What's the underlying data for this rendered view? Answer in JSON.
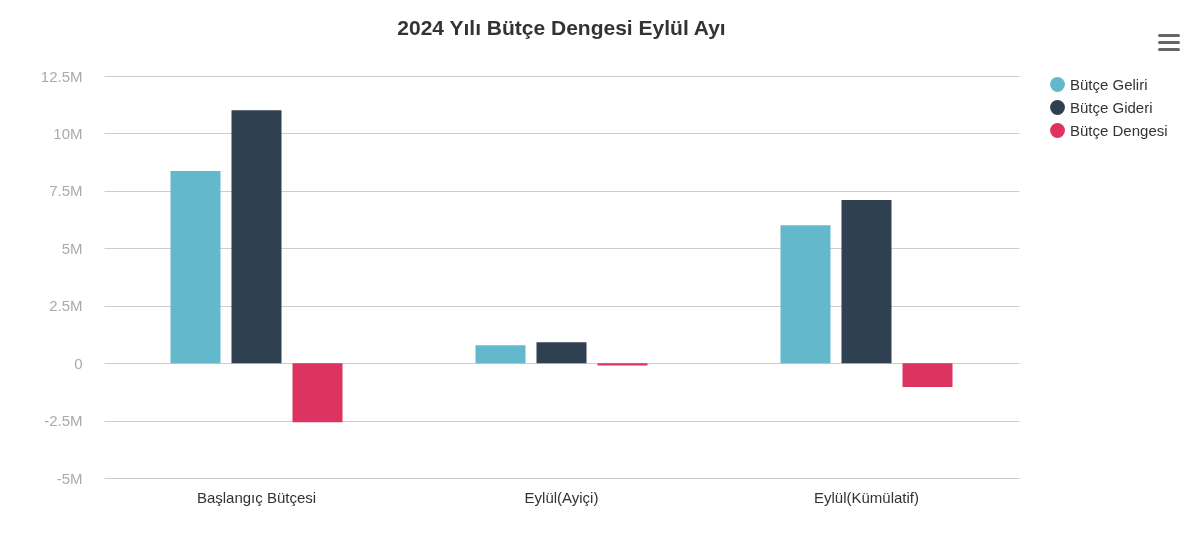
{
  "chart_data": {
    "type": "bar",
    "title": "2024 Yılı Bütçe Dengesi Eylül Ayı",
    "categories": [
      "Başlangıç Bütçesi",
      "Eylül(Ayiçi)",
      "Eylül(Kümülatif)"
    ],
    "series": [
      {
        "name": "Bütçe Geliri",
        "color": "#64b8cc",
        "values": [
          8.36,
          0.78,
          6.0
        ]
      },
      {
        "name": "Bütçe Gideri",
        "color": "#2f4050",
        "values": [
          11.01,
          0.91,
          7.1
        ]
      },
      {
        "name": "Bütçe Dengesi",
        "color": "#dd3361",
        "values": [
          -2.57,
          -0.1,
          -1.04
        ]
      }
    ],
    "ylim": [
      -5,
      12.5
    ],
    "yticks": [
      {
        "value": -5,
        "label": "-5M"
      },
      {
        "value": -2.5,
        "label": "-2.5M"
      },
      {
        "value": 0,
        "label": "0"
      },
      {
        "value": 2.5,
        "label": "2.5M"
      },
      {
        "value": 5,
        "label": "5M"
      },
      {
        "value": 7.5,
        "label": "7.5M"
      },
      {
        "value": 10,
        "label": "10M"
      },
      {
        "value": 12.5,
        "label": "12.5M"
      }
    ],
    "grid": "y",
    "legend": "right"
  }
}
